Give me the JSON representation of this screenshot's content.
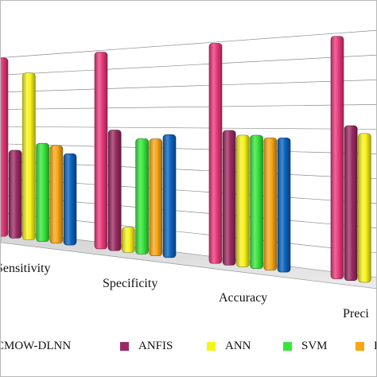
{
  "chart_data": {
    "type": "bar",
    "title": "",
    "xlabel": "",
    "ylabel": "",
    "categories": [
      "Sensitivity",
      "Specificity",
      "Accuracy",
      "Preci"
    ],
    "series": [
      {
        "name": "CMOW-DLNN",
        "color": "#E8387A",
        "values": [
          97,
          96,
          96,
          95
        ]
      },
      {
        "name": "ANFIS",
        "color": "#9B2A62",
        "values": [
          47,
          58,
          58,
          60
        ]
      },
      {
        "name": "ANN",
        "color": "#F7F31A",
        "values": [
          88,
          12,
          56,
          57
        ]
      },
      {
        "name": "SVM",
        "color": "#36E63A",
        "values": [
          51,
          54,
          56,
          null
        ]
      },
      {
        "name": "K",
        "color": "#F8A614",
        "values": [
          50,
          54,
          55,
          null
        ]
      },
      {
        "name": "",
        "color": "#0A62BE",
        "values": [
          46,
          56,
          55,
          null
        ]
      }
    ],
    "legend_position": "bottom",
    "grid": true
  }
}
